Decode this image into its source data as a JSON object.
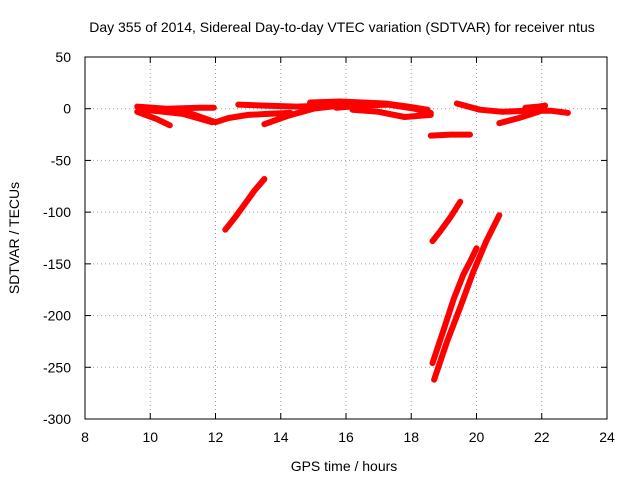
{
  "chart_data": {
    "type": "scatter",
    "title": "Day 355 of 2014, Sidereal Day-to-day VTEC variation (SDTVAR) for receiver ntus",
    "xlabel": "GPS time / hours",
    "ylabel": "SDTVAR / TECUs",
    "xlim": [
      8,
      24
    ],
    "ylim": [
      -300,
      50
    ],
    "xticks": [
      8,
      10,
      12,
      14,
      16,
      18,
      20,
      22,
      24
    ],
    "yticks": [
      -300,
      -250,
      -200,
      -150,
      -100,
      -50,
      0,
      50
    ],
    "grid": true,
    "series_color": "#ff0000",
    "series": [
      {
        "values": [
          [
            9.6,
            2
          ],
          [
            10.5,
            0
          ],
          [
            11.5,
            1
          ],
          [
            11.95,
            1
          ]
        ]
      },
      {
        "values": [
          [
            9.6,
            -3
          ],
          [
            10.2,
            -10
          ],
          [
            10.6,
            -16
          ]
        ]
      },
      {
        "values": [
          [
            9.8,
            -1
          ],
          [
            11.0,
            -5
          ],
          [
            11.9,
            -13
          ]
        ]
      },
      {
        "values": [
          [
            11.0,
            -2
          ],
          [
            12.0,
            -13
          ],
          [
            12.4,
            -9
          ],
          [
            13.0,
            -6
          ],
          [
            13.6,
            -5
          ],
          [
            14.3,
            -4
          ]
        ]
      },
      {
        "values": [
          [
            12.7,
            4
          ],
          [
            13.5,
            3
          ],
          [
            14.5,
            2
          ],
          [
            15.3,
            3
          ],
          [
            15.8,
            4
          ]
        ]
      },
      {
        "values": [
          [
            13.5,
            -15
          ],
          [
            14.2,
            -7
          ],
          [
            15.0,
            0
          ],
          [
            15.8,
            3
          ],
          [
            16.6,
            5
          ]
        ]
      },
      {
        "values": [
          [
            14.9,
            6
          ],
          [
            15.8,
            7
          ],
          [
            16.5,
            6
          ],
          [
            17.2,
            5
          ],
          [
            17.9,
            2
          ],
          [
            18.5,
            -1
          ]
        ]
      },
      {
        "values": [
          [
            15.7,
            1
          ],
          [
            16.5,
            3
          ],
          [
            17.3,
            4
          ],
          [
            18.1,
            0
          ],
          [
            18.6,
            -4
          ]
        ]
      },
      {
        "values": [
          [
            16.2,
            -1
          ],
          [
            17.0,
            -3
          ],
          [
            17.8,
            -8
          ],
          [
            18.6,
            -6
          ]
        ]
      },
      {
        "values": [
          [
            18.6,
            -26
          ],
          [
            19.2,
            -25
          ],
          [
            19.8,
            -25
          ]
        ]
      },
      {
        "values": [
          [
            19.4,
            5
          ],
          [
            20.1,
            -1
          ],
          [
            20.8,
            -3
          ],
          [
            21.5,
            -2
          ],
          [
            22.3,
            -2
          ],
          [
            22.8,
            -4
          ]
        ]
      },
      {
        "values": [
          [
            20.7,
            -14
          ],
          [
            21.3,
            -9
          ],
          [
            21.9,
            -3
          ],
          [
            22.1,
            3
          ]
        ]
      },
      {
        "values": [
          [
            21.5,
            1
          ],
          [
            21.9,
            2
          ],
          [
            22.1,
            3
          ]
        ]
      },
      {
        "values": [
          [
            12.3,
            -117
          ],
          [
            12.6,
            -105
          ],
          [
            12.9,
            -92
          ],
          [
            13.2,
            -79
          ],
          [
            13.5,
            -68
          ]
        ]
      },
      {
        "values": [
          [
            18.65,
            -128
          ],
          [
            18.9,
            -118
          ],
          [
            19.2,
            -105
          ],
          [
            19.5,
            -90
          ]
        ]
      },
      {
        "values": [
          [
            18.7,
            -262
          ],
          [
            19.1,
            -225
          ],
          [
            19.5,
            -192
          ],
          [
            19.9,
            -158
          ],
          [
            20.3,
            -128
          ],
          [
            20.7,
            -103
          ]
        ]
      },
      {
        "values": [
          [
            18.65,
            -246
          ],
          [
            19.0,
            -213
          ],
          [
            19.3,
            -184
          ],
          [
            19.6,
            -160
          ],
          [
            19.8,
            -148
          ],
          [
            20.0,
            -135
          ]
        ]
      }
    ]
  }
}
